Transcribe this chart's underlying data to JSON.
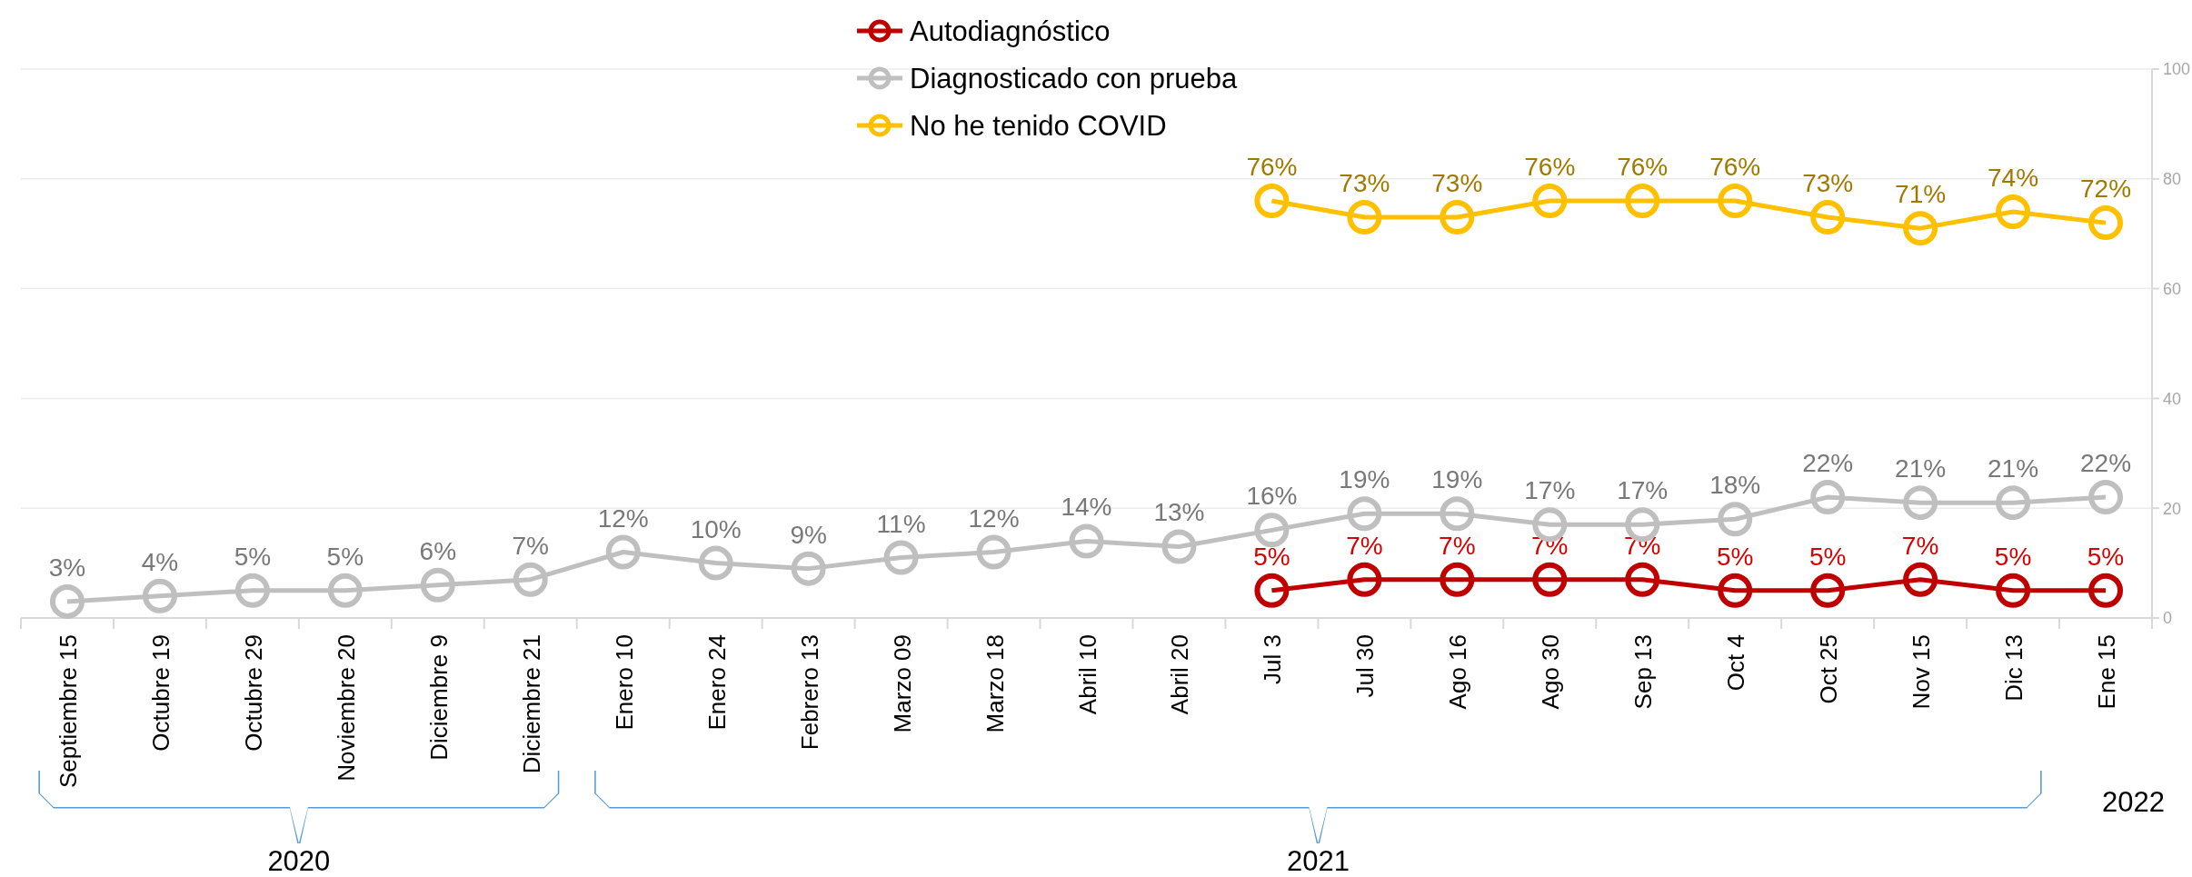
{
  "chart_data": {
    "type": "line",
    "categories": [
      "Septiembre 15",
      "Octubre 19",
      "Octubre 29",
      "Noviembre 20",
      "Diciembre 9",
      "Diciembre 21",
      "Enero 10",
      "Enero 24",
      "Febrero 13",
      "Marzo 09",
      "Marzo 18",
      "Abril 10",
      "Abril 20",
      "Jul 3",
      "Jul 30",
      "Ago 16",
      "Ago 30",
      "Sep 13",
      "Oct 4",
      "Oct 25",
      "Nov 15",
      "Dic 13",
      "Ene 15"
    ],
    "series": [
      {
        "name": "Autodiagnóstico",
        "color": "#c00000",
        "values": [
          null,
          null,
          null,
          null,
          null,
          null,
          null,
          null,
          null,
          null,
          null,
          null,
          null,
          5,
          7,
          7,
          7,
          7,
          5,
          5,
          7,
          5,
          5
        ],
        "value_labels": [
          null,
          null,
          null,
          null,
          null,
          null,
          null,
          null,
          null,
          null,
          null,
          null,
          null,
          "5%",
          "7%",
          "7%",
          "7%",
          "7%",
          "5%",
          "5%",
          "7%",
          "5%",
          "5%"
        ]
      },
      {
        "name": "Diagnosticado con prueba",
        "color": "#bfbfbf",
        "values": [
          3,
          4,
          5,
          5,
          6,
          7,
          12,
          10,
          9,
          11,
          12,
          14,
          13,
          16,
          19,
          19,
          17,
          17,
          18,
          22,
          21,
          21,
          22
        ],
        "value_labels": [
          "3%",
          "4%",
          "5%",
          "5%",
          "6%",
          "7%",
          "12%",
          "10%",
          "9%",
          "11%",
          "12%",
          "14%",
          "13%",
          "16%",
          "19%",
          "19%",
          "17%",
          "17%",
          "18%",
          "22%",
          "21%",
          "21%",
          "22%"
        ]
      },
      {
        "name": "No he tenido COVID",
        "color": "#ffc000",
        "values": [
          null,
          null,
          null,
          null,
          null,
          null,
          null,
          null,
          null,
          null,
          null,
          null,
          null,
          76,
          73,
          73,
          76,
          76,
          76,
          73,
          71,
          74,
          72
        ],
        "value_labels": [
          null,
          null,
          null,
          null,
          null,
          null,
          null,
          null,
          null,
          null,
          null,
          null,
          null,
          "76%",
          "73%",
          "73%",
          "76%",
          "76%",
          "76%",
          "73%",
          "71%",
          "74%",
          "72%"
        ]
      }
    ],
    "ylim": [
      0,
      100
    ],
    "yticks": [
      0,
      20,
      40,
      60,
      80,
      100
    ],
    "grid": "y",
    "legend": "top",
    "marker": "circle",
    "line_style": "solid",
    "annotations": [
      "2020",
      "2021",
      "2022"
    ]
  }
}
